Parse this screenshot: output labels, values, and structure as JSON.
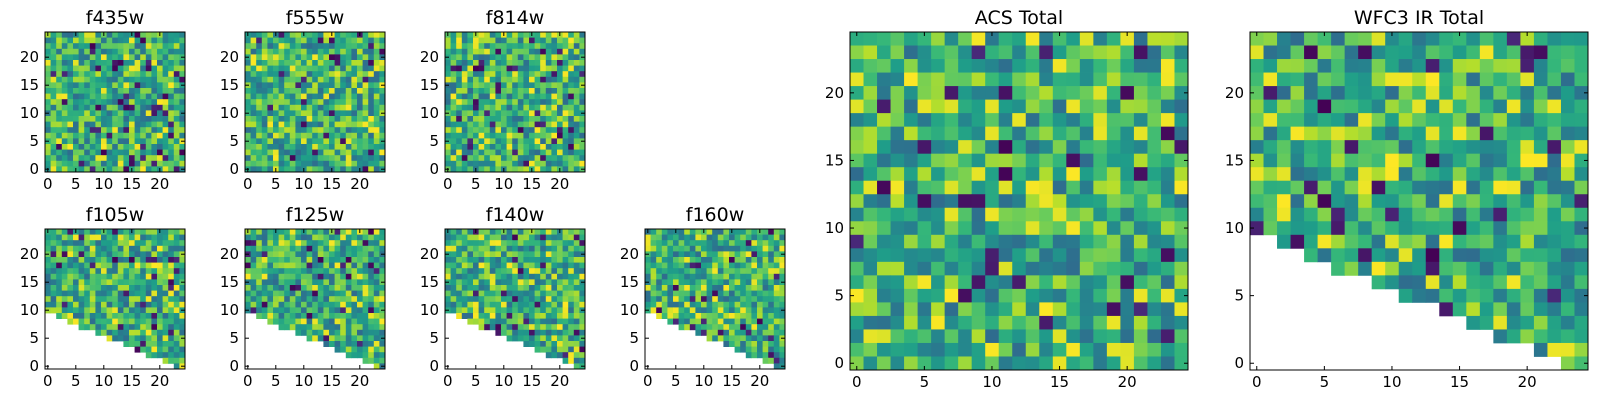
{
  "chart_data": {
    "type": "heatmap",
    "colormap": "viridis",
    "grid_size": 25,
    "x_ticks": [
      0,
      5,
      10,
      15,
      20
    ],
    "panels": [
      {
        "title": "f435w",
        "mask": "none",
        "y_ticks": [
          0,
          5,
          10,
          15,
          20
        ],
        "seed": 11
      },
      {
        "title": "f555w",
        "mask": "none",
        "y_ticks": [
          0,
          5,
          10,
          15,
          20
        ],
        "seed": 23
      },
      {
        "title": "f814w",
        "mask": "none",
        "y_ticks": [
          0,
          5,
          10,
          15,
          20
        ],
        "seed": 37
      },
      {
        "title": "f105w",
        "mask": "lower-left",
        "y_ticks": [
          0,
          5,
          10,
          15,
          20
        ],
        "seed": 41
      },
      {
        "title": "f125w",
        "mask": "lower-left",
        "y_ticks": [
          0,
          5,
          10,
          15,
          20
        ],
        "seed": 53
      },
      {
        "title": "f140w",
        "mask": "lower-left",
        "y_ticks": [
          0,
          5,
          10,
          15,
          20
        ],
        "seed": 67
      },
      {
        "title": "f160w",
        "mask": "lower-left",
        "y_ticks": [
          0,
          5,
          10,
          15,
          20
        ],
        "seed": 71
      },
      {
        "title": "ACS Total",
        "mask": "none",
        "y_ticks": [
          0,
          5,
          10,
          15,
          20
        ],
        "seed": 83
      },
      {
        "title": "WFC3 IR Total",
        "mask": "lower-left",
        "y_ticks": [
          0,
          5,
          10,
          15,
          20
        ],
        "seed": 97
      }
    ]
  }
}
